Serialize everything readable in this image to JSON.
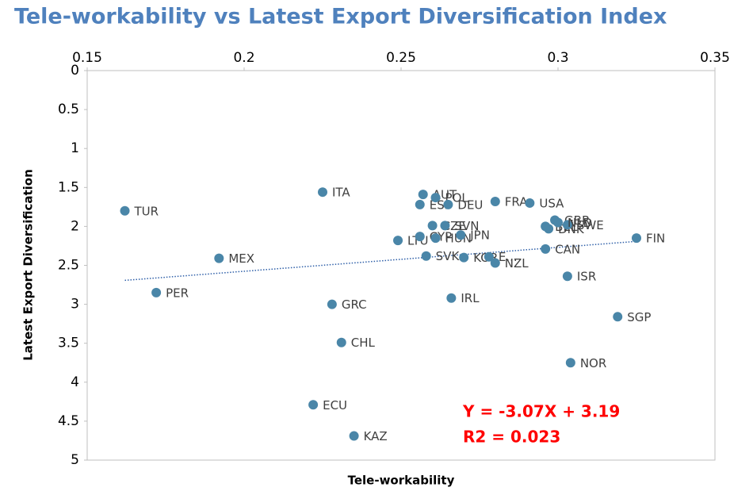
{
  "chart_data": {
    "type": "scatter",
    "title": "Tele-workability vs Latest Export Diversification Index",
    "x_label": "Tele-workability",
    "y_label": "Latest Export Diversification",
    "xlim": [
      0.15,
      0.35
    ],
    "xticks": [
      0.15,
      0.2,
      0.25,
      0.3,
      0.35
    ],
    "ylim": [
      0,
      5
    ],
    "yticks": [
      0,
      0.5,
      1,
      1.5,
      2,
      2.5,
      3,
      3.5,
      4,
      4.5,
      5
    ],
    "y_inverted": true,
    "x_axis_position": "top",
    "series": [
      {
        "color": "#4a86a8",
        "labels": [
          "TUR",
          "MEX",
          "PER",
          "ITA",
          "GRC",
          "CHL",
          "ECU",
          "KAZ",
          "ESP",
          "AUT",
          "POL",
          "DEU",
          "FRA",
          "USA",
          "CZE",
          "SVN",
          "LTU",
          "CYP",
          "HUN",
          "JPN",
          "SVK",
          "KOR",
          "E...",
          "NZL",
          "BEL",
          "GBR",
          "DNK",
          "SWE",
          "NLD",
          "CAN",
          "ISR",
          "FIN",
          "SGP",
          "NOR",
          "IRL"
        ],
        "x": [
          0.162,
          0.192,
          0.172,
          0.225,
          0.228,
          0.231,
          0.222,
          0.235,
          0.256,
          0.257,
          0.261,
          0.265,
          0.28,
          0.291,
          0.26,
          0.264,
          0.249,
          0.256,
          0.261,
          0.269,
          0.258,
          0.27,
          0.278,
          0.28,
          0.296,
          0.299,
          0.297,
          0.303,
          0.3,
          0.296,
          0.303,
          0.325,
          0.319,
          0.304,
          0.266
        ],
        "values": [
          1.8,
          2.41,
          2.85,
          1.56,
          3.0,
          3.49,
          4.29,
          4.69,
          1.72,
          1.59,
          1.63,
          1.72,
          1.68,
          1.7,
          1.99,
          1.99,
          2.18,
          2.13,
          2.15,
          2.11,
          2.38,
          2.4,
          2.39,
          2.47,
          2.0,
          1.92,
          2.03,
          1.98,
          1.95,
          2.29,
          2.64,
          2.15,
          3.16,
          3.75,
          2.92
        ]
      }
    ],
    "trendline": {
      "slope": -3.07,
      "intercept": 3.19,
      "color": "#2e5fa8"
    },
    "annotations": [
      "Y = -3.07X + 3.19",
      "R2 = 0.023"
    ],
    "annotation_color": "#ff0000"
  }
}
